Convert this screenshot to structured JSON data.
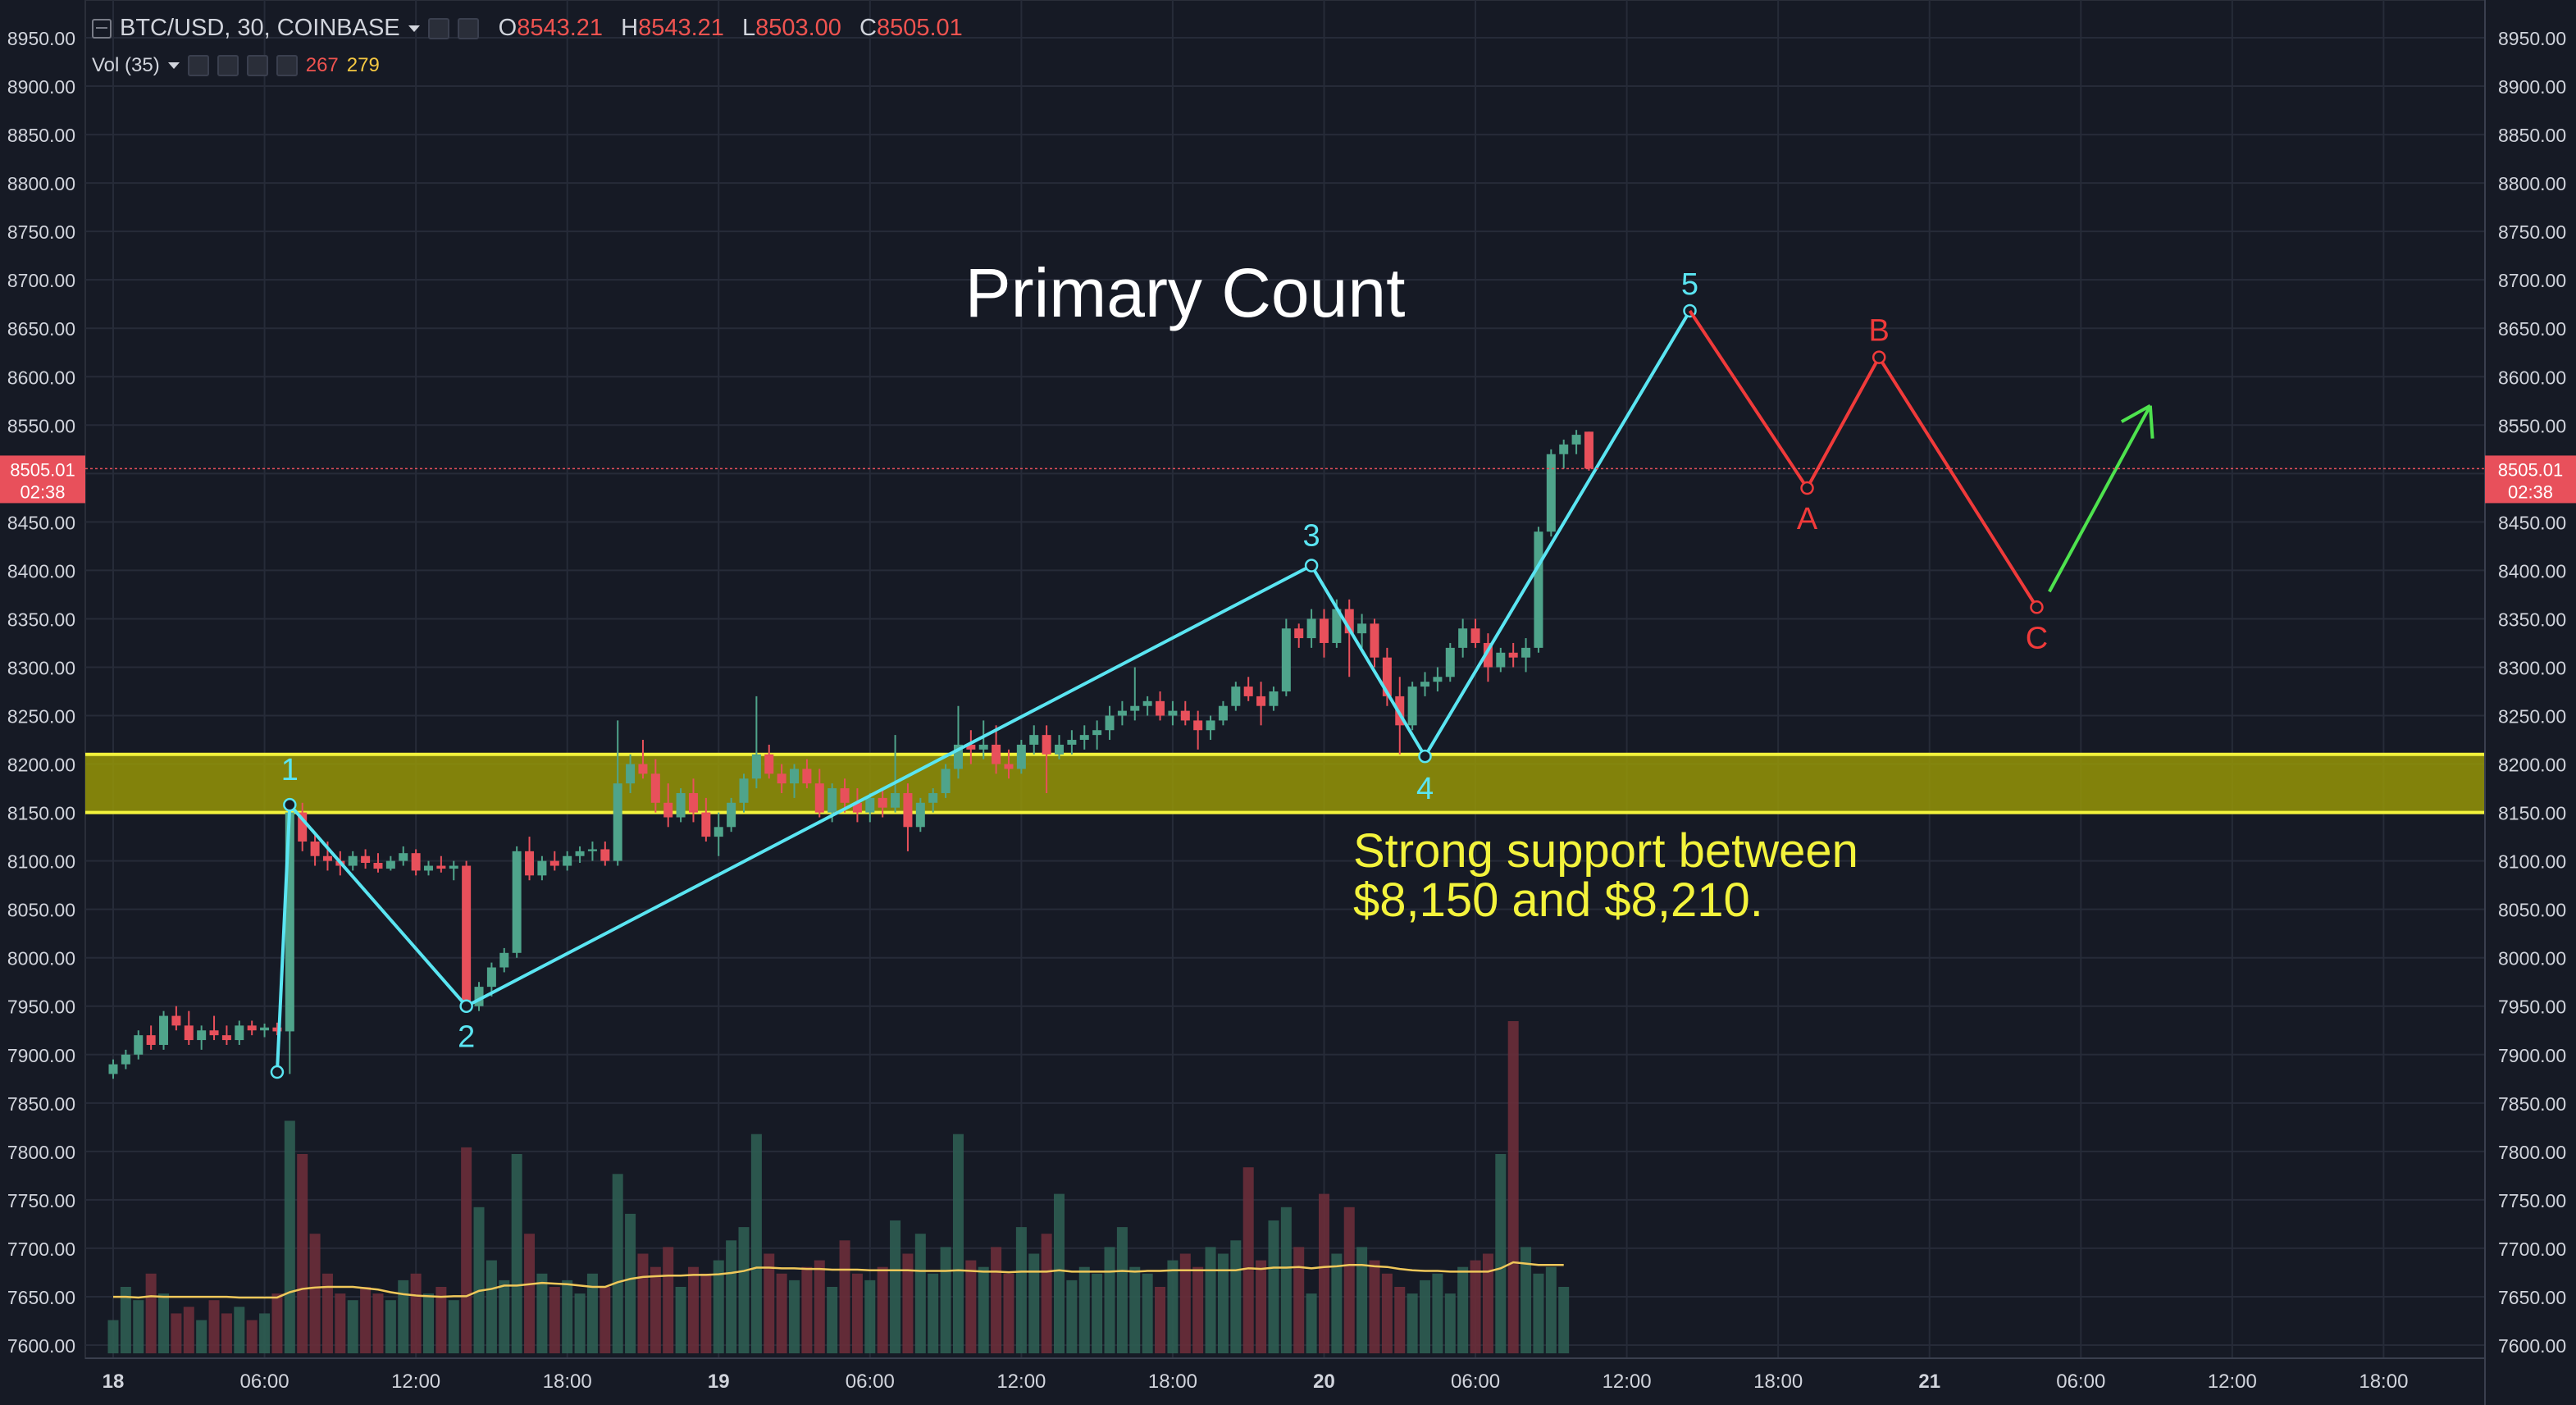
{
  "header": {
    "symbol": "BTC/USD, 30, COINBASE",
    "ohlc": {
      "o_label": "O",
      "o": "8543.21",
      "h_label": "H",
      "h": "8543.21",
      "l_label": "L",
      "l": "8503.00",
      "c_label": "C",
      "c": "8505.01"
    },
    "volume": {
      "label": "Vol (35)",
      "v1": "267",
      "v2": "279"
    }
  },
  "price_tag": {
    "price": "8505.01",
    "countdown": "02:38"
  },
  "annotations": {
    "title": "Primary Count",
    "support_line1": "Strong support between",
    "support_line2": "$8,150 and $8,210."
  },
  "colors": {
    "background": "#161a25",
    "up": "#4fa48b",
    "down": "#e8505b",
    "wave": "#5ae5f2",
    "correction": "#f03a3a",
    "arrow": "#4ee34e",
    "support_zone": "#9a9a06",
    "support_line": "#f3f33c",
    "vol_ma": "#f0c85a",
    "grid": "#262b38"
  },
  "chart_data": {
    "type": "candlestick",
    "symbol": "BTC/USD",
    "interval": "30",
    "exchange": "COINBASE",
    "ylim": [
      7590,
      8970
    ],
    "y_ticks": [
      "8950.00",
      "8900.00",
      "8850.00",
      "8800.00",
      "8750.00",
      "8700.00",
      "8650.00",
      "8600.00",
      "8550.00",
      "8500.00",
      "8450.00",
      "8400.00",
      "8350.00",
      "8300.00",
      "8250.00",
      "8200.00",
      "8150.00",
      "8100.00",
      "8050.00",
      "8000.00",
      "7950.00",
      "7900.00",
      "7850.00",
      "7800.00",
      "7750.00",
      "7700.00",
      "7650.00",
      "7600.00"
    ],
    "x_ticks": [
      {
        "label": "18",
        "bar": 0,
        "bold": true
      },
      {
        "label": "06:00",
        "bar": 12
      },
      {
        "label": "12:00",
        "bar": 24
      },
      {
        "label": "18:00",
        "bar": 36
      },
      {
        "label": "19",
        "bar": 48,
        "bold": true
      },
      {
        "label": "06:00",
        "bar": 60
      },
      {
        "label": "12:00",
        "bar": 72
      },
      {
        "label": "18:00",
        "bar": 84
      },
      {
        "label": "20",
        "bar": 96,
        "bold": true
      },
      {
        "label": "06:00",
        "bar": 108
      },
      {
        "label": "12:00",
        "bar": 120
      },
      {
        "label": "18:00",
        "bar": 132
      },
      {
        "label": "21",
        "bar": 144,
        "bold": true
      },
      {
        "label": "06:00",
        "bar": 156
      },
      {
        "label": "12:00",
        "bar": 168
      },
      {
        "label": "18:00",
        "bar": 180
      }
    ],
    "candles_ohlc": [
      [
        7880,
        7895,
        7875,
        7890
      ],
      [
        7890,
        7905,
        7885,
        7900
      ],
      [
        7900,
        7925,
        7895,
        7920
      ],
      [
        7920,
        7930,
        7905,
        7910
      ],
      [
        7910,
        7945,
        7905,
        7940
      ],
      [
        7940,
        7950,
        7925,
        7930
      ],
      [
        7930,
        7945,
        7910,
        7915
      ],
      [
        7915,
        7930,
        7905,
        7925
      ],
      [
        7925,
        7940,
        7915,
        7920
      ],
      [
        7920,
        7930,
        7910,
        7915
      ],
      [
        7915,
        7935,
        7910,
        7930
      ],
      [
        7930,
        7935,
        7920,
        7925
      ],
      [
        7925,
        7932,
        7918,
        7928
      ],
      [
        7928,
        7933,
        7920,
        7924
      ],
      [
        7924,
        7935,
        7880,
        8150
      ],
      [
        8150,
        8160,
        8110,
        8120
      ],
      [
        8120,
        8130,
        8095,
        8105
      ],
      [
        8105,
        8120,
        8090,
        8100
      ],
      [
        8100,
        8110,
        8085,
        8095
      ],
      [
        8095,
        8110,
        8090,
        8105
      ],
      [
        8105,
        8112,
        8092,
        8098
      ],
      [
        8098,
        8108,
        8088,
        8092
      ],
      [
        8092,
        8105,
        8090,
        8100
      ],
      [
        8100,
        8115,
        8095,
        8108
      ],
      [
        8108,
        8112,
        8085,
        8090
      ],
      [
        8090,
        8100,
        8085,
        8095
      ],
      [
        8095,
        8105,
        8088,
        8092
      ],
      [
        8092,
        8100,
        8080,
        8095
      ],
      [
        8095,
        8100,
        7945,
        7950
      ],
      [
        7950,
        7975,
        7945,
        7970
      ],
      [
        7970,
        7995,
        7960,
        7990
      ],
      [
        7990,
        8010,
        7985,
        8005
      ],
      [
        8005,
        8115,
        8000,
        8110
      ],
      [
        8110,
        8125,
        8080,
        8085
      ],
      [
        8085,
        8105,
        8080,
        8100
      ],
      [
        8100,
        8110,
        8090,
        8095
      ],
      [
        8095,
        8110,
        8090,
        8105
      ],
      [
        8105,
        8115,
        8098,
        8110
      ],
      [
        8110,
        8120,
        8100,
        8112
      ],
      [
        8112,
        8120,
        8095,
        8100
      ],
      [
        8100,
        8245,
        8095,
        8180
      ],
      [
        8180,
        8210,
        8170,
        8200
      ],
      [
        8200,
        8225,
        8185,
        8190
      ],
      [
        8190,
        8205,
        8150,
        8160
      ],
      [
        8160,
        8180,
        8135,
        8145
      ],
      [
        8145,
        8175,
        8140,
        8170
      ],
      [
        8170,
        8185,
        8140,
        8150
      ],
      [
        8150,
        8165,
        8120,
        8125
      ],
      [
        8125,
        8150,
        8105,
        8135
      ],
      [
        8135,
        8165,
        8130,
        8160
      ],
      [
        8160,
        8190,
        8150,
        8185
      ],
      [
        8185,
        8270,
        8175,
        8210
      ],
      [
        8210,
        8220,
        8185,
        8190
      ],
      [
        8190,
        8200,
        8170,
        8180
      ],
      [
        8180,
        8200,
        8165,
        8195
      ],
      [
        8195,
        8205,
        8175,
        8180
      ],
      [
        8180,
        8195,
        8145,
        8150
      ],
      [
        8150,
        8180,
        8140,
        8175
      ],
      [
        8175,
        8185,
        8150,
        8160
      ],
      [
        8160,
        8175,
        8140,
        8150
      ],
      [
        8150,
        8170,
        8140,
        8165
      ],
      [
        8165,
        8175,
        8145,
        8155
      ],
      [
        8155,
        8230,
        8150,
        8170
      ],
      [
        8170,
        8180,
        8110,
        8135
      ],
      [
        8135,
        8165,
        8130,
        8160
      ],
      [
        8160,
        8175,
        8150,
        8170
      ],
      [
        8170,
        8200,
        8165,
        8195
      ],
      [
        8195,
        8260,
        8185,
        8220
      ],
      [
        8220,
        8235,
        8200,
        8215
      ],
      [
        8215,
        8245,
        8205,
        8220
      ],
      [
        8220,
        8240,
        8190,
        8200
      ],
      [
        8200,
        8215,
        8185,
        8195
      ],
      [
        8195,
        8225,
        8190,
        8220
      ],
      [
        8220,
        8240,
        8210,
        8230
      ],
      [
        8230,
        8240,
        8170,
        8210
      ],
      [
        8210,
        8230,
        8205,
        8220
      ],
      [
        8220,
        8235,
        8210,
        8225
      ],
      [
        8225,
        8240,
        8215,
        8230
      ],
      [
        8230,
        8245,
        8215,
        8235
      ],
      [
        8235,
        8260,
        8225,
        8250
      ],
      [
        8250,
        8265,
        8240,
        8255
      ],
      [
        8255,
        8300,
        8245,
        8260
      ],
      [
        8260,
        8270,
        8250,
        8265
      ],
      [
        8265,
        8275,
        8245,
        8250
      ],
      [
        8250,
        8265,
        8240,
        8255
      ],
      [
        8255,
        8265,
        8240,
        8245
      ],
      [
        8245,
        8255,
        8215,
        8235
      ],
      [
        8235,
        8250,
        8225,
        8245
      ],
      [
        8245,
        8265,
        8240,
        8260
      ],
      [
        8260,
        8285,
        8255,
        8280
      ],
      [
        8280,
        8290,
        8265,
        8270
      ],
      [
        8270,
        8285,
        8240,
        8260
      ],
      [
        8260,
        8280,
        8255,
        8275
      ],
      [
        8275,
        8350,
        8270,
        8340
      ],
      [
        8340,
        8345,
        8320,
        8330
      ],
      [
        8330,
        8360,
        8320,
        8350
      ],
      [
        8350,
        8360,
        8310,
        8325
      ],
      [
        8325,
        8370,
        8320,
        8360
      ],
      [
        8360,
        8370,
        8290,
        8335
      ],
      [
        8335,
        8355,
        8320,
        8345
      ],
      [
        8345,
        8350,
        8300,
        8310
      ],
      [
        8310,
        8320,
        8260,
        8270
      ],
      [
        8270,
        8290,
        8210,
        8240
      ],
      [
        8240,
        8285,
        8235,
        8280
      ],
      [
        8280,
        8295,
        8270,
        8285
      ],
      [
        8285,
        8300,
        8275,
        8290
      ],
      [
        8290,
        8325,
        8285,
        8320
      ],
      [
        8320,
        8350,
        8310,
        8340
      ],
      [
        8340,
        8350,
        8320,
        8325
      ],
      [
        8325,
        8335,
        8285,
        8300
      ],
      [
        8300,
        8320,
        8295,
        8315
      ],
      [
        8315,
        8325,
        8300,
        8310
      ],
      [
        8310,
        8330,
        8295,
        8320
      ],
      [
        8320,
        8445,
        8315,
        8440
      ],
      [
        8440,
        8525,
        8435,
        8520
      ],
      [
        8520,
        8535,
        8505,
        8530
      ],
      [
        8530,
        8545,
        8520,
        8540
      ],
      [
        8543.21,
        8543.21,
        8503.0,
        8505.01
      ]
    ],
    "volume": [
      5,
      10,
      8,
      12,
      9,
      6,
      7,
      5,
      8,
      6,
      7,
      5,
      6,
      9,
      35,
      30,
      18,
      12,
      9,
      8,
      10,
      9,
      8,
      11,
      12,
      9,
      10,
      8,
      31,
      22,
      14,
      11,
      30,
      18,
      12,
      10,
      11,
      9,
      12,
      10,
      27,
      21,
      15,
      13,
      16,
      10,
      13,
      12,
      14,
      17,
      19,
      33,
      15,
      12,
      11,
      13,
      14,
      10,
      17,
      12,
      11,
      13,
      20,
      15,
      18,
      12,
      16,
      33,
      14,
      13,
      16,
      12,
      19,
      15,
      18,
      24,
      11,
      13,
      12,
      16,
      19,
      13,
      12,
      10,
      14,
      15,
      13,
      16,
      15,
      17,
      28,
      14,
      20,
      22,
      16,
      9,
      24,
      15,
      22,
      16,
      14,
      12,
      10,
      9,
      11,
      12,
      9,
      13,
      14,
      15,
      30,
      50,
      16,
      12,
      13,
      10
    ],
    "volume_ma": [
      8.5,
      8.5,
      8.4,
      8.6,
      8.5,
      8.5,
      8.5,
      8.5,
      8.5,
      8.5,
      8.4,
      8.4,
      8.4,
      8.4,
      9.2,
      9.7,
      9.9,
      10,
      10,
      10,
      9.8,
      9.6,
      9.2,
      8.9,
      8.7,
      8.6,
      8.5,
      8.6,
      8.6,
      9.4,
      9.7,
      10.2,
      10.2,
      10.4,
      10.6,
      10.5,
      10.4,
      10.2,
      10,
      10,
      10.7,
      11.2,
      11.5,
      11.6,
      11.7,
      11.7,
      11.8,
      11.8,
      11.9,
      12.1,
      12.4,
      12.9,
      12.9,
      12.8,
      12.8,
      12.7,
      12.7,
      12.6,
      12.6,
      12.6,
      12.5,
      12.5,
      12.5,
      12.5,
      12.4,
      12.4,
      12.4,
      12.5,
      12.4,
      12.3,
      12.3,
      12.2,
      12.3,
      12.3,
      12.3,
      12.5,
      12.3,
      12.3,
      12.3,
      12.3,
      12.4,
      12.3,
      12.4,
      12.4,
      12.5,
      12.5,
      12.5,
      12.5,
      12.5,
      12.5,
      12.8,
      12.7,
      12.9,
      12.9,
      13,
      12.8,
      13,
      13.1,
      13.3,
      13.3,
      13.1,
      13,
      12.7,
      12.5,
      12.4,
      12.4,
      12.3,
      12.3,
      12.3,
      12.3,
      12.8,
      13.7,
      13.5,
      13.3,
      13.3,
      13.3
    ],
    "waves_primary": [
      {
        "label": "1",
        "bar": 14,
        "price": 8158
      },
      {
        "label": "2",
        "bar": 28,
        "price": 7950
      },
      {
        "label": "3",
        "bar": 95,
        "price": 8405
      },
      {
        "label": "4",
        "bar": 104,
        "price": 8208
      },
      {
        "label": "5",
        "bar": 125,
        "price": 8668
      }
    ],
    "wave_start": {
      "bar": 13,
      "price": 7882
    },
    "waves_correction": [
      {
        "label": "A",
        "bar": 134.3,
        "price": 8485
      },
      {
        "label": "B",
        "bar": 140,
        "price": 8620
      },
      {
        "label": "C",
        "bar": 152.5,
        "price": 8362
      }
    ],
    "arrow": {
      "from": {
        "bar": 153.5,
        "price": 8378
      },
      "to": {
        "bar": 161.5,
        "price": 8570
      }
    },
    "support_zone": [
      8150,
      8210
    ]
  }
}
